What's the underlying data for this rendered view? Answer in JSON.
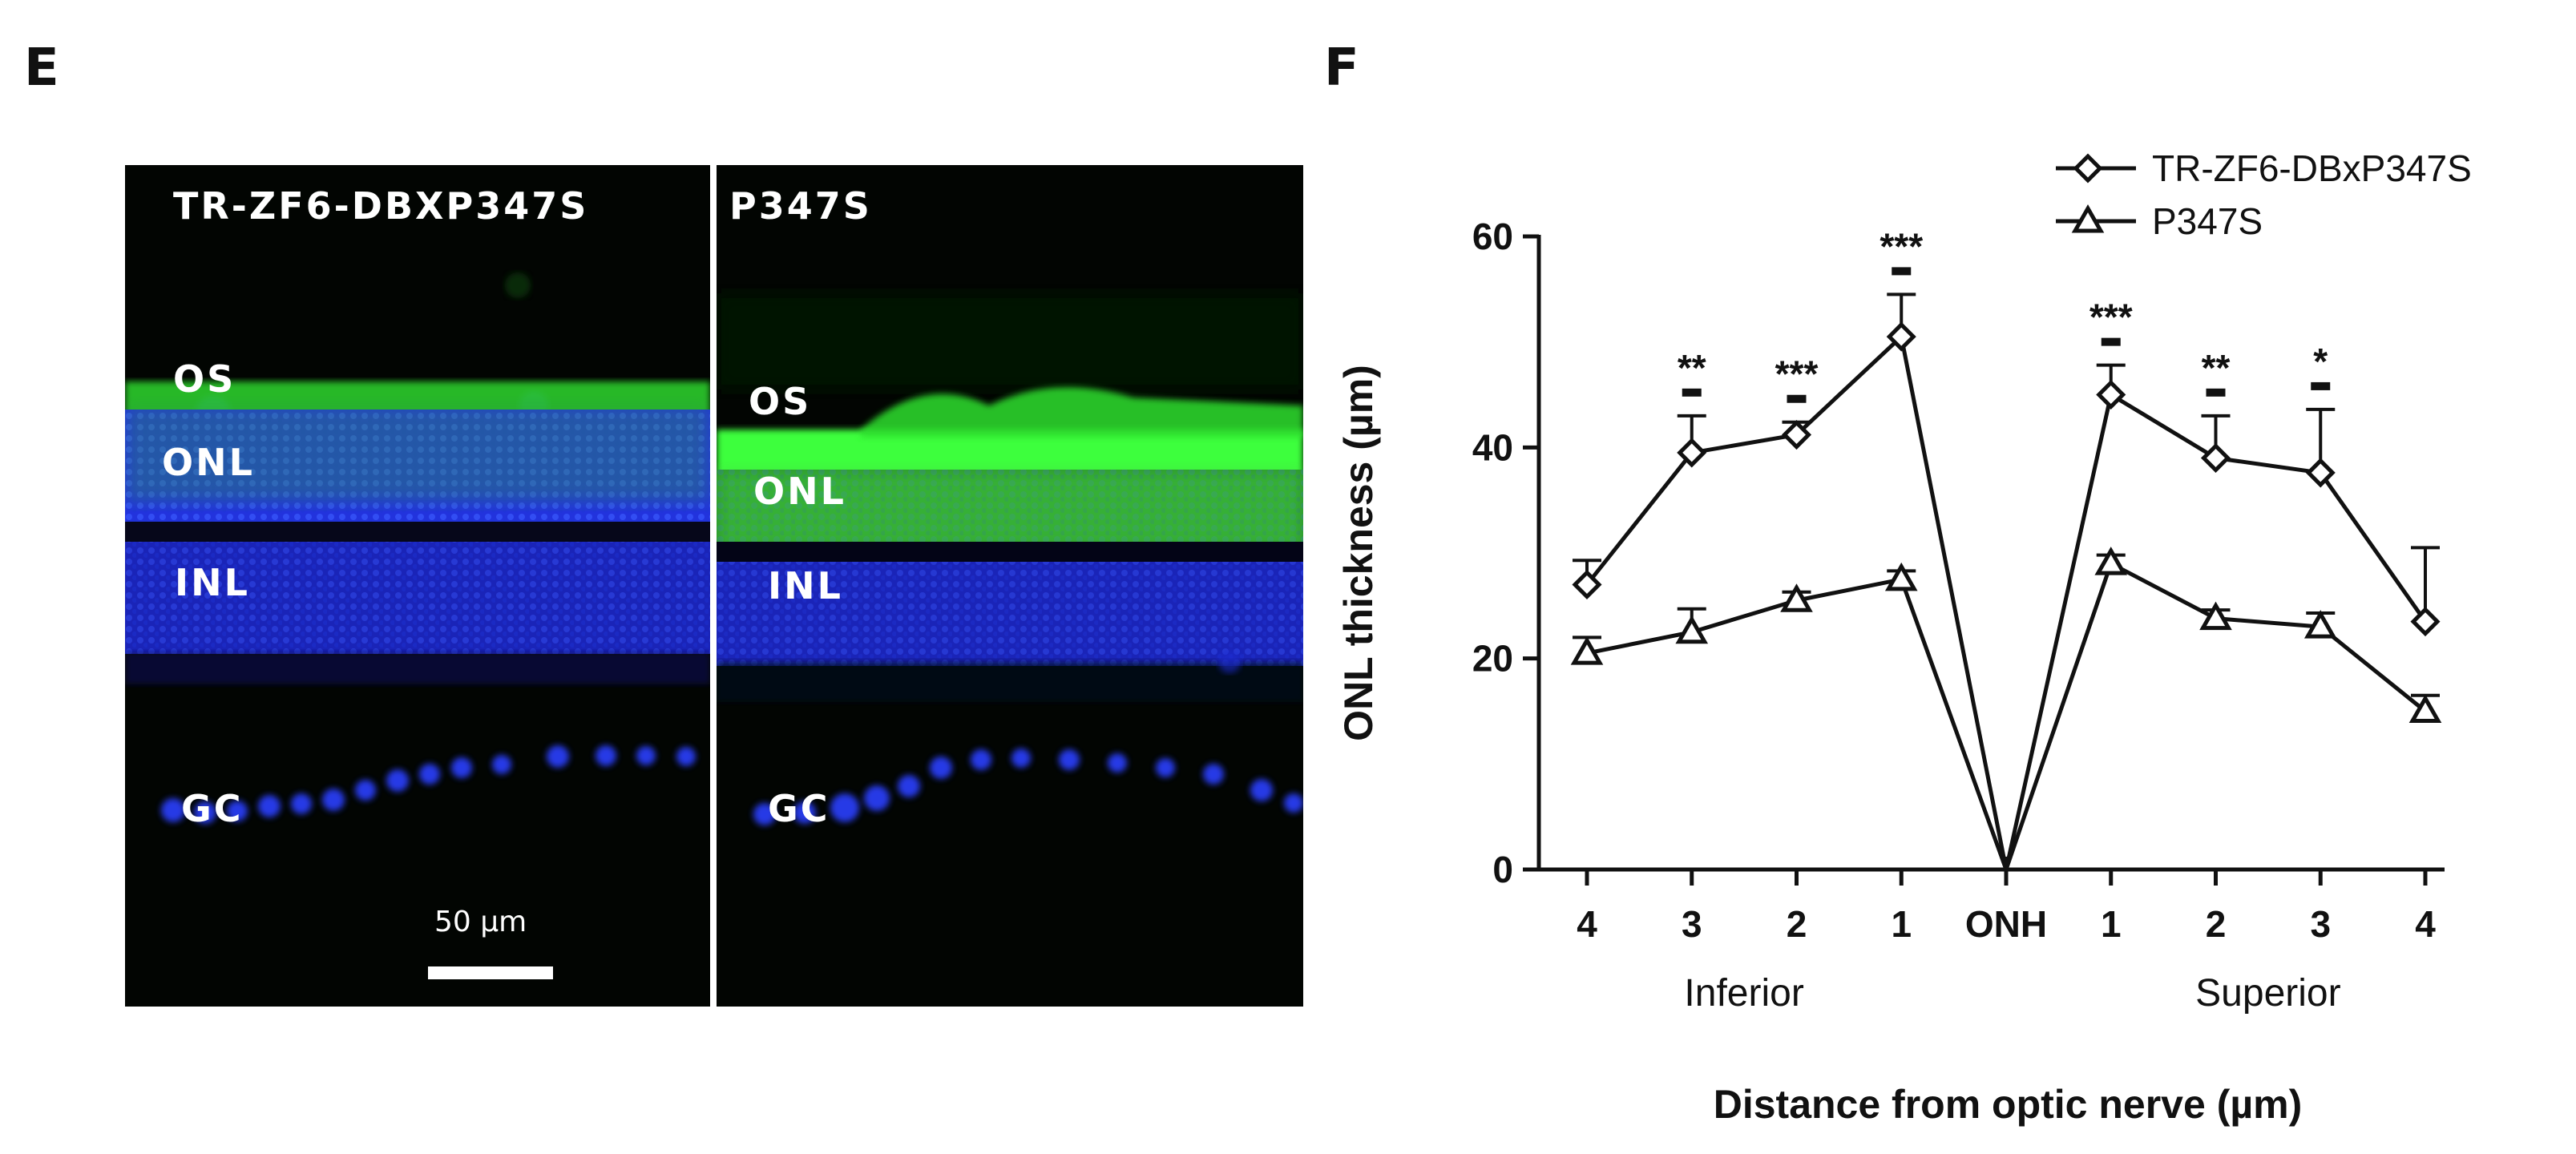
{
  "panels": {
    "left_letter": "E",
    "right_letter": "F"
  },
  "micrographs": {
    "left": {
      "title": "TR-ZF6-DBXP347S",
      "layers": [
        "OS",
        "ONL",
        "INL",
        "GC"
      ]
    },
    "right": {
      "title": "P347S",
      "layers": [
        "OS",
        "ONL",
        "INL",
        "GC"
      ]
    },
    "scale_bar_label": "50 µm",
    "colors": {
      "background": "#020502",
      "nuclei": "#1f3cff",
      "photoreceptor": "#38ff38",
      "label": "#ffffff"
    }
  },
  "chart_data": {
    "type": "line",
    "categories": [
      "4",
      "3",
      "2",
      "1",
      "ONH",
      "1",
      "2",
      "3",
      "4"
    ],
    "group_labels": [
      "Inferior",
      "Superior"
    ],
    "xlabel": "Distance from optic nerve (µm)",
    "ylabel": "ONL thickness (µm)",
    "ylim": [
      0,
      60
    ],
    "yticks": [
      0,
      20,
      40,
      60
    ],
    "legend_position": "top-right",
    "series": [
      {
        "name": "TR-ZF6-DBxP347S",
        "marker": "diamond",
        "values": [
          27,
          39.5,
          41.2,
          50.5,
          0,
          45,
          39,
          37.6,
          23.5
        ],
        "error": [
          2.3,
          3.5,
          1.2,
          4.0,
          0,
          2.8,
          4.0,
          6.0,
          7.0
        ]
      },
      {
        "name": "P347S",
        "marker": "triangle",
        "values": [
          20.5,
          22.5,
          25.5,
          27.5,
          0,
          29,
          23.8,
          23,
          15
        ],
        "error": [
          1.5,
          2.2,
          0.8,
          0.8,
          0,
          0.8,
          0.8,
          1.3,
          1.5
        ]
      }
    ],
    "significance": [
      "",
      "**",
      "***",
      "***",
      "",
      "***",
      "**",
      "*",
      ""
    ],
    "colors": {
      "line": "#111111",
      "marker_fill": "#ffffff"
    }
  }
}
